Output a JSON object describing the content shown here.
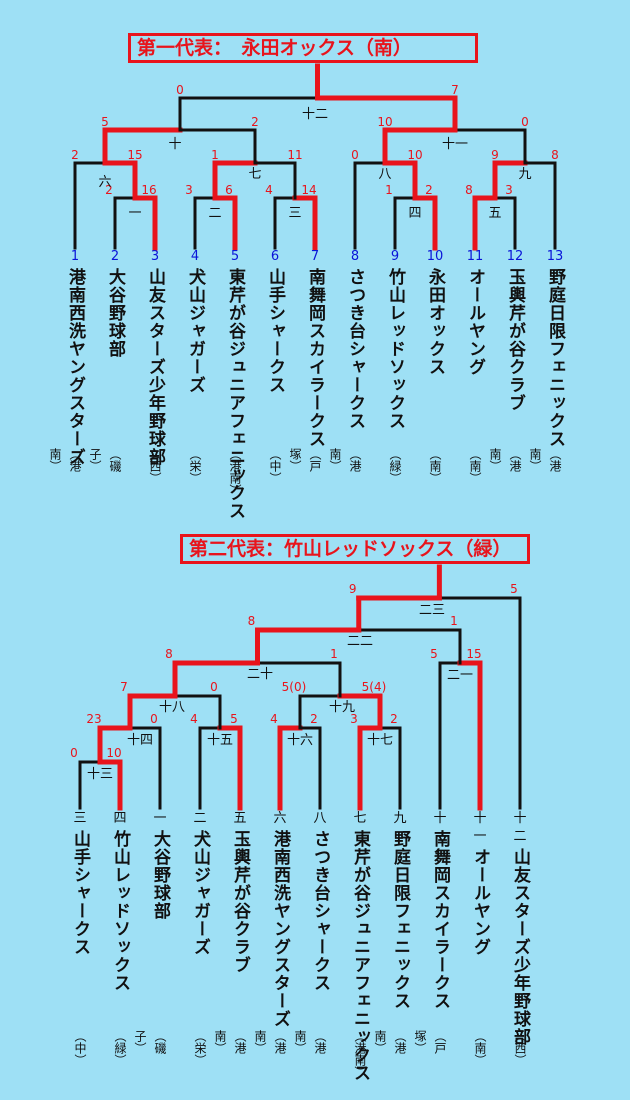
{
  "section1": {
    "title": "第一代表：　永田オックス（南）",
    "teams": [
      {
        "num": "1",
        "name": "港南西洗ヤングスターズ",
        "dist": "（港南）"
      },
      {
        "num": "2",
        "name": "大谷野球部",
        "dist": "（磯子）"
      },
      {
        "num": "3",
        "name": "山友スターズ少年野球部",
        "dist": "（西）"
      },
      {
        "num": "4",
        "name": "犬山ジャガーズ",
        "dist": "（栄）"
      },
      {
        "num": "5",
        "name": "東芹が谷ジュニアフェニックス",
        "dist": "（港南）"
      },
      {
        "num": "6",
        "name": "山手シャークス",
        "dist": "（中）"
      },
      {
        "num": "7",
        "name": "南舞岡スカイラークス",
        "dist": "（戸塚）"
      },
      {
        "num": "8",
        "name": "さつき台シャークス",
        "dist": "（港南）"
      },
      {
        "num": "9",
        "name": "竹山レッドソックス",
        "dist": "（緑）"
      },
      {
        "num": "10",
        "name": "永田オックス",
        "dist": "（南）"
      },
      {
        "num": "11",
        "name": "オールヤング",
        "dist": "（南）"
      },
      {
        "num": "12",
        "name": "玉輿芹が谷クラブ",
        "dist": "（港南）"
      },
      {
        "num": "13",
        "name": "野庭日限フェニックス",
        "dist": "（港南）"
      }
    ],
    "game_labels": [
      {
        "id": "g1",
        "label": "一"
      },
      {
        "id": "g2",
        "label": "二"
      },
      {
        "id": "g3",
        "label": "三"
      },
      {
        "id": "g4",
        "label": "四"
      },
      {
        "id": "g5",
        "label": "五"
      },
      {
        "id": "g6",
        "label": "六"
      },
      {
        "id": "g7",
        "label": "七"
      },
      {
        "id": "g8",
        "label": "八"
      },
      {
        "id": "g9",
        "label": "九"
      },
      {
        "id": "g10",
        "label": "十"
      },
      {
        "id": "g11",
        "label": "十一"
      },
      {
        "id": "g12",
        "label": "十二"
      }
    ],
    "scores": {
      "g1": [
        "2",
        "16"
      ],
      "g2": [
        "3",
        "6"
      ],
      "g3": [
        "4",
        "14"
      ],
      "g4": [
        "1",
        "2"
      ],
      "g5": [
        "8",
        "3"
      ],
      "g6": [
        "2",
        "15"
      ],
      "g7": [
        "1",
        "11"
      ],
      "g8": [
        "0",
        "10"
      ],
      "g9": [
        "9",
        "8"
      ],
      "g10": [
        "5",
        "2"
      ],
      "g11": [
        "10",
        "0"
      ],
      "g12": [
        "0",
        "7"
      ]
    }
  },
  "section2": {
    "title": "第二代表：竹山レッドソックス（緑）",
    "teams": [
      {
        "num": "三",
        "name": "山手シャークス",
        "dist": "（中）"
      },
      {
        "num": "四",
        "name": "竹山レッドソックス",
        "dist": "（緑）"
      },
      {
        "num": "一",
        "name": "大谷野球部",
        "dist": "（磯子）"
      },
      {
        "num": "二",
        "name": "犬山ジャガーズ",
        "dist": "（栄）"
      },
      {
        "num": "五",
        "name": "玉輿芹が谷クラブ",
        "dist": "（港南）"
      },
      {
        "num": "六",
        "name": "港南西洗ヤングスターズ",
        "dist": "（港南）"
      },
      {
        "num": "八",
        "name": "さつき台シャークス",
        "dist": "（港南）"
      },
      {
        "num": "七",
        "name": "東芹が谷ジュニアフェニックス",
        "dist": "（港南）"
      },
      {
        "num": "九",
        "name": "野庭日限フェニックス",
        "dist": "（港南）"
      },
      {
        "num": "十",
        "name": "南舞岡スカイラークス",
        "dist": "（戸塚）"
      },
      {
        "num": "十一",
        "name": "オールヤング",
        "dist": "（南）"
      },
      {
        "num": "十二",
        "name": "山友スターズ少年野球部",
        "dist": "（西）"
      }
    ],
    "game_labels": [
      {
        "id": "g13",
        "label": "十三"
      },
      {
        "id": "g14",
        "label": "十四"
      },
      {
        "id": "g15",
        "label": "十五"
      },
      {
        "id": "g16",
        "label": "十六"
      },
      {
        "id": "g17",
        "label": "十七"
      },
      {
        "id": "g18",
        "label": "十八"
      },
      {
        "id": "g19",
        "label": "十九"
      },
      {
        "id": "g20",
        "label": "二十"
      },
      {
        "id": "g21",
        "label": "二一"
      },
      {
        "id": "g22",
        "label": "二二"
      },
      {
        "id": "g23",
        "label": "二三"
      }
    ],
    "scores": {
      "g13": [
        "0",
        "10"
      ],
      "g14": [
        "23",
        "0"
      ],
      "g15": [
        "4",
        "5"
      ],
      "g16": [
        "4",
        "2"
      ],
      "g17": [
        "3",
        "2"
      ],
      "g18": [
        "7",
        "0"
      ],
      "g19": [
        "5(0)",
        "5(4)"
      ],
      "g20": [
        "8",
        "1"
      ],
      "g21": [
        "5",
        "15"
      ],
      "g22": [
        "8",
        "1"
      ],
      "g23": [
        "9",
        "5"
      ]
    }
  },
  "colors": {
    "background": "#9ee0f5",
    "win_line": "#e8141c",
    "line": "#111111",
    "team_number": "#0a14d8",
    "score": "#e8141c"
  }
}
